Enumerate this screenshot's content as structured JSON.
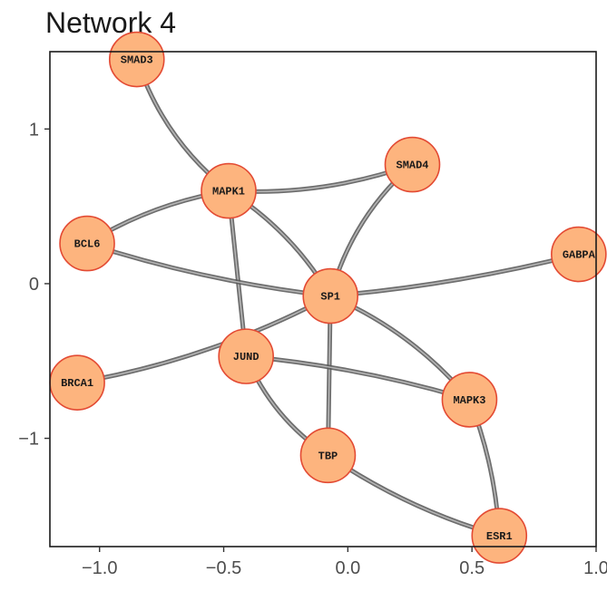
{
  "title": "Network 4",
  "colors": {
    "node_fill": "#fdb47e",
    "node_stroke": "#e34a33",
    "edge": "#555555"
  },
  "chart_data": {
    "type": "network",
    "xlim": [
      -1.2,
      1.0
    ],
    "ylim": [
      -1.7,
      1.5
    ],
    "x_ticks": [
      {
        "value": -1.0,
        "label": "−1.0"
      },
      {
        "value": -0.5,
        "label": "−0.5"
      },
      {
        "value": 0.0,
        "label": "0.0"
      },
      {
        "value": 0.5,
        "label": "0.5"
      },
      {
        "value": 1.0,
        "label": "1.0"
      }
    ],
    "y_ticks": [
      {
        "value": 1,
        "label": "1"
      },
      {
        "value": 0,
        "label": "0"
      },
      {
        "value": -1,
        "label": "−1"
      }
    ],
    "nodes": [
      {
        "id": "SMAD3",
        "x": -0.85,
        "y": 1.45
      },
      {
        "id": "MAPK1",
        "x": -0.48,
        "y": 0.6
      },
      {
        "id": "SMAD4",
        "x": 0.26,
        "y": 0.77
      },
      {
        "id": "BCL6",
        "x": -1.05,
        "y": 0.26
      },
      {
        "id": "GABPA",
        "x": 0.93,
        "y": 0.19
      },
      {
        "id": "SP1",
        "x": -0.07,
        "y": -0.08
      },
      {
        "id": "JUND",
        "x": -0.41,
        "y": -0.47
      },
      {
        "id": "BRCA1",
        "x": -1.09,
        "y": -0.64
      },
      {
        "id": "MAPK3",
        "x": 0.49,
        "y": -0.75
      },
      {
        "id": "TBP",
        "x": -0.08,
        "y": -1.11
      },
      {
        "id": "ESR1",
        "x": 0.61,
        "y": -1.63
      }
    ],
    "edges": [
      {
        "source": "SMAD3",
        "target": "MAPK1",
        "curve": 0.15
      },
      {
        "source": "MAPK1",
        "target": "SMAD4",
        "curve": 0.1
      },
      {
        "source": "MAPK1",
        "target": "BCL6",
        "curve": 0.1
      },
      {
        "source": "MAPK1",
        "target": "SP1",
        "curve": -0.12
      },
      {
        "source": "MAPK1",
        "target": "JUND",
        "curve": 0.0
      },
      {
        "source": "SMAD4",
        "target": "SP1",
        "curve": 0.15
      },
      {
        "source": "BCL6",
        "target": "SP1",
        "curve": 0.05
      },
      {
        "source": "GABPA",
        "target": "SP1",
        "curve": -0.04
      },
      {
        "source": "SP1",
        "target": "BRCA1",
        "curve": -0.08
      },
      {
        "source": "SP1",
        "target": "TBP",
        "curve": 0.0
      },
      {
        "source": "SP1",
        "target": "MAPK3",
        "curve": -0.12
      },
      {
        "source": "JUND",
        "target": "MAPK3",
        "curve": -0.05
      },
      {
        "source": "JUND",
        "target": "TBP",
        "curve": 0.15
      },
      {
        "source": "MAPK3",
        "target": "ESR1",
        "curve": -0.08
      },
      {
        "source": "TBP",
        "target": "ESR1",
        "curve": 0.08
      }
    ]
  }
}
